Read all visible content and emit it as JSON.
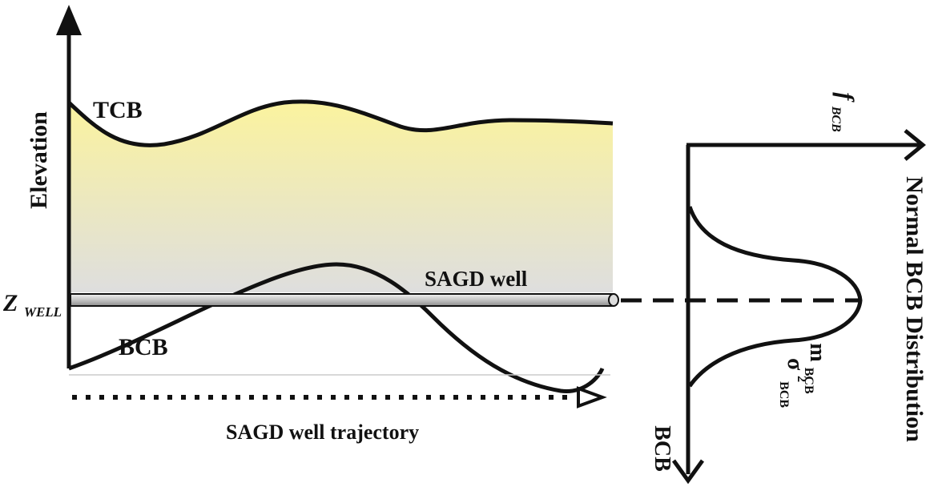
{
  "left_panel": {
    "y_axis_label": "Elevation",
    "top_boundary_label": "TCB",
    "bottom_boundary_label": "BCB",
    "well_label": "SAGD well",
    "well_level_label": {
      "main": "Z",
      "sub": "WELL"
    },
    "trajectory_label": "SAGD well trajectory"
  },
  "right_panel": {
    "x_axis_label": {
      "main": "f",
      "sub": "BCB"
    },
    "y_axis_label": "BCB",
    "distribution_title": "Normal BCB Distribution",
    "mean_label": {
      "main": "m",
      "sub": "BCB"
    },
    "variance_label": {
      "main": "σ",
      "sup": "2",
      "sub": "BCB"
    }
  },
  "colors": {
    "fill_top": "#fbf39e",
    "fill_bottom": "#dcdcdc",
    "stroke": "#111111",
    "well_tube": "#c8c8c8"
  }
}
